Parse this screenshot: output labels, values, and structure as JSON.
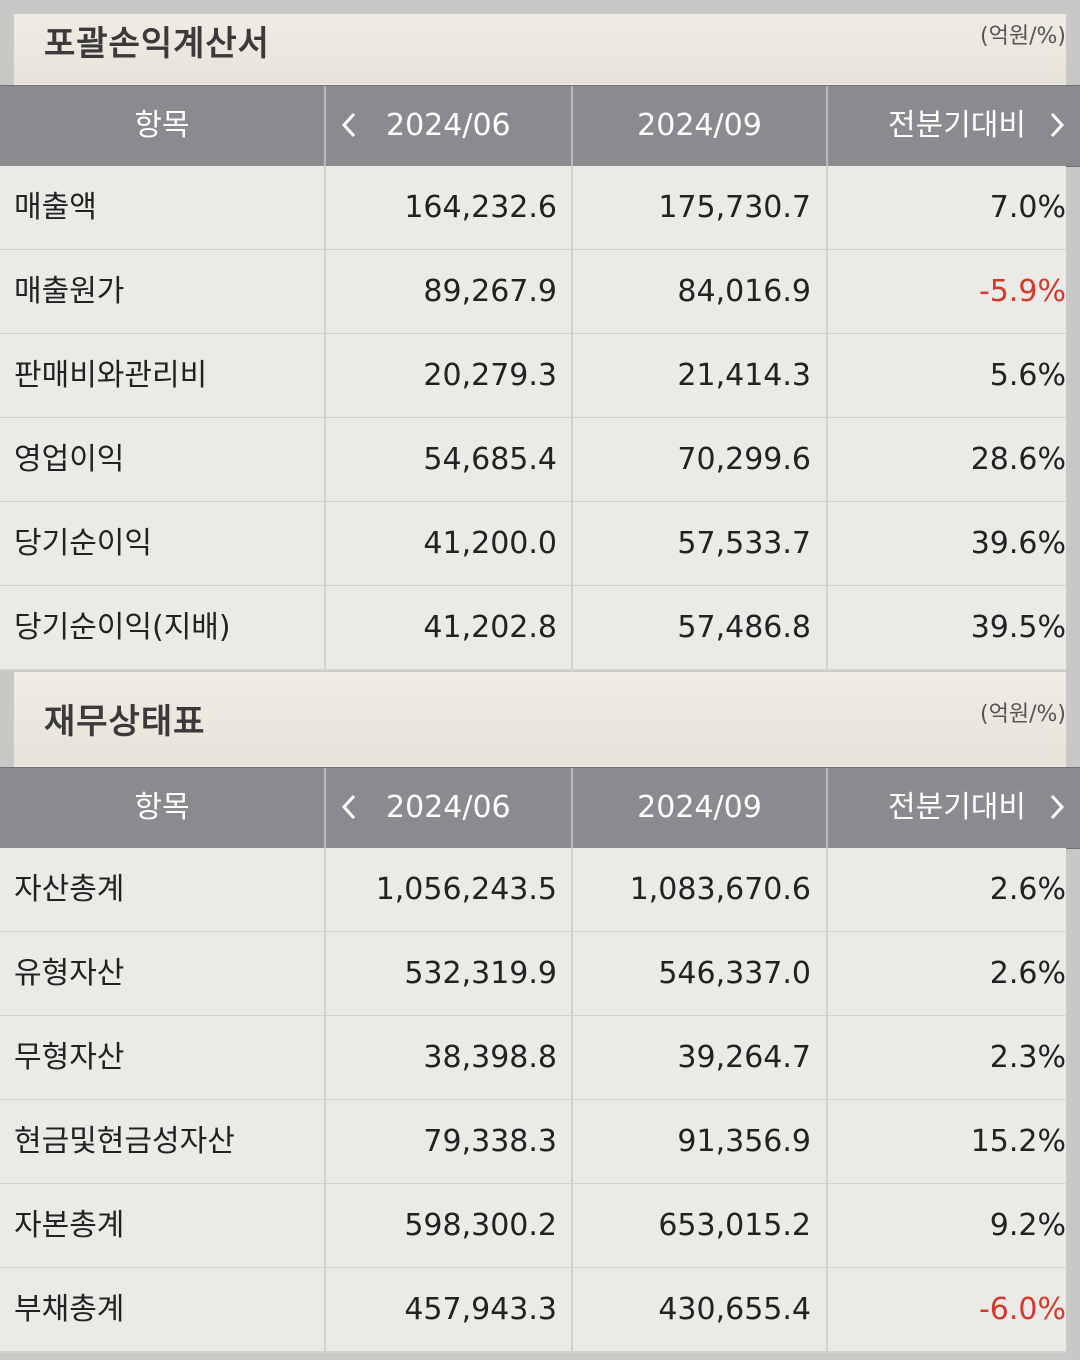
{
  "sections": [
    {
      "title": "포괄손익계산서",
      "unit": "(억원/%)",
      "headers": {
        "item": "항목",
        "period1": "2024/06",
        "period2": "2024/09",
        "change": "전분기대비"
      },
      "rows": [
        {
          "name": "매출액",
          "v1": "164,232.6",
          "v2": "175,730.7",
          "change": "7.0%"
        },
        {
          "name": "매출원가",
          "v1": "89,267.9",
          "v2": "84,016.9",
          "change": "-5.9%"
        },
        {
          "name": "판매비와관리비",
          "v1": "20,279.3",
          "v2": "21,414.3",
          "change": "5.6%"
        },
        {
          "name": "영업이익",
          "v1": "54,685.4",
          "v2": "70,299.6",
          "change": "28.6%"
        },
        {
          "name": "당기순이익",
          "v1": "41,200.0",
          "v2": "57,533.7",
          "change": "39.6%"
        },
        {
          "name": "당기순이익(지배)",
          "v1": "41,202.8",
          "v2": "57,486.8",
          "change": "39.5%"
        }
      ]
    },
    {
      "title": "재무상태표",
      "unit": "(억원/%)",
      "headers": {
        "item": "항목",
        "period1": "2024/06",
        "period2": "2024/09",
        "change": "전분기대비"
      },
      "rows": [
        {
          "name": "자산총계",
          "v1": "1,056,243.5",
          "v2": "1,083,670.6",
          "change": "2.6%"
        },
        {
          "name": "유형자산",
          "v1": "532,319.9",
          "v2": "546,337.0",
          "change": "2.6%"
        },
        {
          "name": "무형자산",
          "v1": "38,398.8",
          "v2": "39,264.7",
          "change": "2.3%"
        },
        {
          "name": "현금및현금성자산",
          "v1": "79,338.3",
          "v2": "91,356.9",
          "change": "15.2%"
        },
        {
          "name": "자본총계",
          "v1": "598,300.2",
          "v2": "653,015.2",
          "change": "9.2%"
        },
        {
          "name": "부채총계",
          "v1": "457,943.3",
          "v2": "430,655.4",
          "change": "-6.0%"
        }
      ]
    }
  ],
  "icons": {
    "prev": "chevron-left-icon",
    "next": "chevron-right-icon"
  },
  "colors": {
    "header_bg": "#8a8b8f",
    "negative": "#d23a2e",
    "row_bg": "#eceae6"
  }
}
